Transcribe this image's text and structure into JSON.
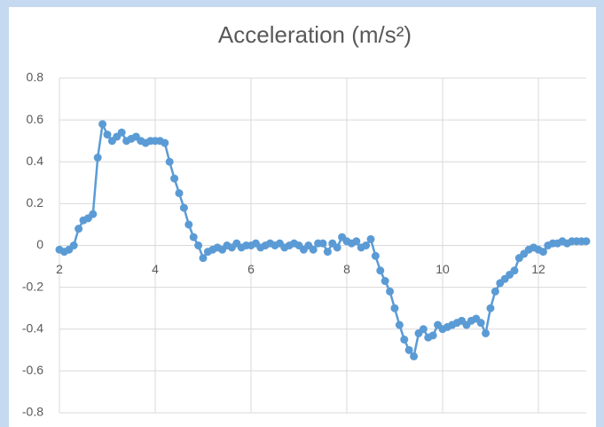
{
  "chart_data": {
    "type": "scatter-line",
    "title": "Acceleration (m/s²)",
    "color": "#5b9bd5",
    "grid": true,
    "xlim": [
      2,
      13
    ],
    "xticks": [
      2,
      4,
      6,
      8,
      10,
      12
    ],
    "ylim": [
      -0.8,
      0.8
    ],
    "yticks": [
      0.8,
      0.6,
      0.4,
      0.2,
      0,
      -0.2,
      -0.4,
      -0.6,
      -0.8
    ],
    "x": [
      2,
      2.1,
      2.2,
      2.3,
      2.4,
      2.5,
      2.6,
      2.7,
      2.8,
      2.9,
      3,
      3.1,
      3.2,
      3.3,
      3.4,
      3.5,
      3.6,
      3.7,
      3.8,
      3.9,
      4,
      4.1,
      4.2,
      4.3,
      4.4,
      4.5,
      4.6,
      4.7,
      4.8,
      4.9,
      5,
      5.1,
      5.2,
      5.3,
      5.4,
      5.5,
      5.6,
      5.7,
      5.8,
      5.9,
      6,
      6.1,
      6.2,
      6.3,
      6.4,
      6.5,
      6.6,
      6.7,
      6.8,
      6.9,
      7,
      7.1,
      7.2,
      7.3,
      7.4,
      7.5,
      7.6,
      7.7,
      7.8,
      7.9,
      8,
      8.1,
      8.2,
      8.3,
      8.4,
      8.5,
      8.6,
      8.7,
      8.8,
      8.9,
      9,
      9.1,
      9.2,
      9.3,
      9.4,
      9.5,
      9.6,
      9.7,
      9.8,
      9.9,
      10,
      10.1,
      10.2,
      10.3,
      10.4,
      10.5,
      10.6,
      10.7,
      10.8,
      10.9,
      11,
      11.1,
      11.2,
      11.3,
      11.4,
      11.5,
      11.6,
      11.7,
      11.8,
      11.9,
      12,
      12.1,
      12.2,
      12.3,
      12.4,
      12.5,
      12.6,
      12.7,
      12.8,
      12.9,
      13
    ],
    "values": [
      -0.02,
      -0.03,
      -0.02,
      0,
      0.08,
      0.12,
      0.13,
      0.15,
      0.42,
      0.58,
      0.53,
      0.5,
      0.52,
      0.54,
      0.5,
      0.51,
      0.52,
      0.5,
      0.49,
      0.5,
      0.5,
      0.5,
      0.49,
      0.4,
      0.32,
      0.25,
      0.18,
      0.1,
      0.04,
      0,
      -0.06,
      -0.03,
      -0.02,
      -0.01,
      -0.02,
      0,
      -0.01,
      0.01,
      -0.01,
      0,
      0,
      0.01,
      -0.01,
      0,
      0.01,
      0,
      0.01,
      -0.01,
      0,
      0.01,
      0,
      -0.02,
      0,
      -0.02,
      0.01,
      0.01,
      -0.03,
      0.01,
      -0.01,
      0.04,
      0.02,
      0.01,
      0.02,
      -0.01,
      0,
      0.03,
      -0.05,
      -0.12,
      -0.17,
      -0.22,
      -0.3,
      -0.38,
      -0.45,
      -0.5,
      -0.53,
      -0.42,
      -0.4,
      -0.44,
      -0.43,
      -0.38,
      -0.4,
      -0.39,
      -0.38,
      -0.37,
      -0.36,
      -0.38,
      -0.36,
      -0.35,
      -0.37,
      -0.42,
      -0.3,
      -0.22,
      -0.18,
      -0.16,
      -0.14,
      -0.12,
      -0.06,
      -0.04,
      -0.02,
      -0.01,
      -0.02,
      -0.03,
      0,
      0.01,
      0.01,
      0.02,
      0.01,
      0.02,
      0.02,
      0.02,
      0.02
    ]
  }
}
